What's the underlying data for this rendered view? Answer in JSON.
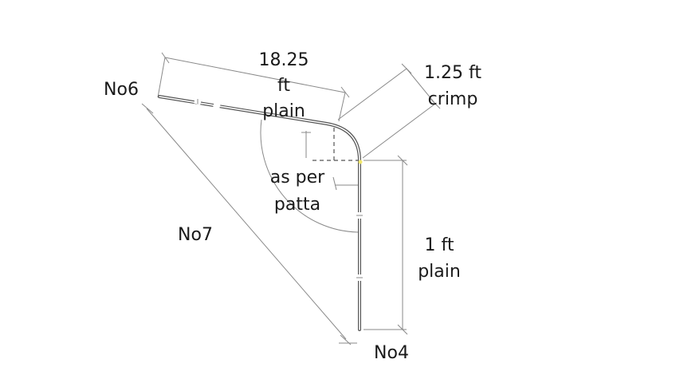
{
  "labels": {
    "top_left_id": "No6",
    "left_side_id": "No7",
    "bottom_id": "No4",
    "top_length_value": "18.25",
    "top_length_unit": "ft",
    "top_length_type": "plain",
    "bend_length": "1.25 ft",
    "bend_type": "crimp",
    "bend_note_line1": "as per",
    "bend_note_line2": "patta",
    "vertical_length": "1 ft",
    "vertical_type": "plain"
  },
  "colors": {
    "bar": "#555555",
    "dimension_line": "#8a8a8a",
    "text": "#1a1a1a",
    "bend_point": "#f2e86b"
  }
}
